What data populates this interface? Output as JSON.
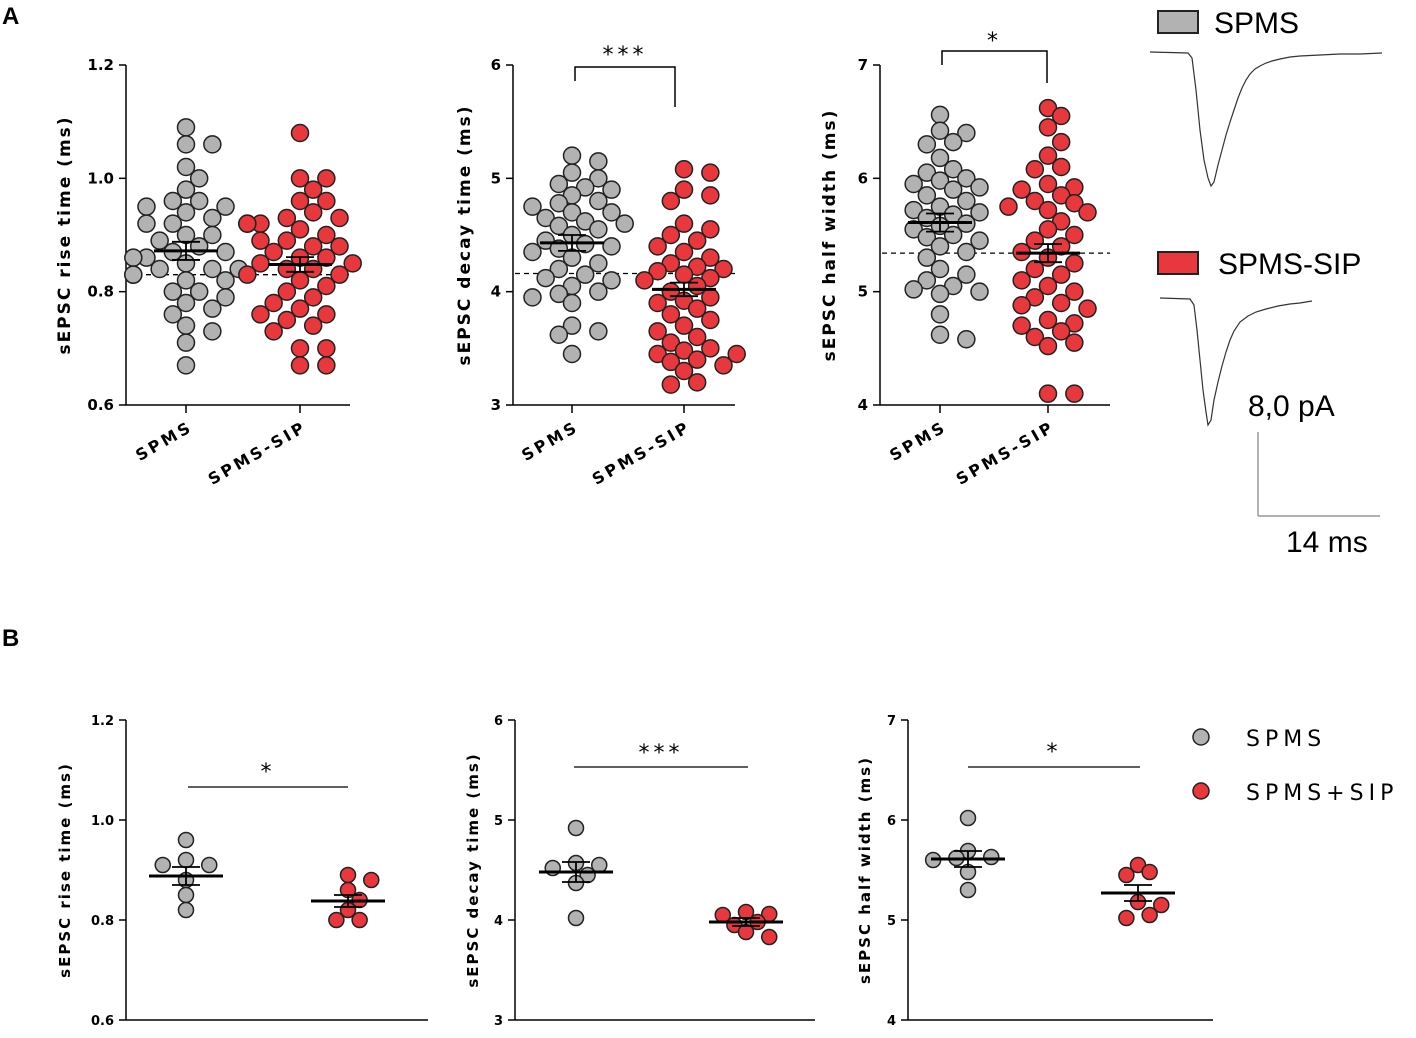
{
  "colors": {
    "spms": "#b2b2b2",
    "sip": "#e8383d",
    "stroke": "#222222"
  },
  "panel_labels": {
    "a": "A",
    "b": "B"
  },
  "legend_top": {
    "spms": "SPMS",
    "sip": "SPMS-SIP"
  },
  "legend_bottom": {
    "spms": "SPMS",
    "sip": "SPMS+SIP"
  },
  "scale_bar": {
    "amplitude": "8,0 pA",
    "time": "14 ms"
  },
  "chart_data": [
    {
      "id": "a1",
      "type": "scatter",
      "panel": "A",
      "ylabel": "sEPSC rise time (ms)",
      "ylim": [
        0.6,
        1.2
      ],
      "yticks": [
        "0.6",
        "0.8",
        "1.0",
        "1.2"
      ],
      "categories": [
        "SPMS",
        "SPMS-SIP"
      ],
      "series": [
        {
          "name": "SPMS",
          "mean": 0.872,
          "sem": 0.016,
          "values": [
            1.09,
            1.06,
            1.06,
            1.02,
            1.0,
            0.98,
            0.96,
            0.96,
            0.95,
            0.95,
            0.94,
            0.93,
            0.92,
            0.92,
            0.9,
            0.9,
            0.89,
            0.88,
            0.87,
            0.87,
            0.86,
            0.86,
            0.85,
            0.84,
            0.84,
            0.84,
            0.83,
            0.83,
            0.82,
            0.82,
            0.8,
            0.8,
            0.79,
            0.78,
            0.77,
            0.76,
            0.74,
            0.73,
            0.71,
            0.67
          ]
        },
        {
          "name": "SPMS-SIP",
          "mean": 0.848,
          "sem": 0.013,
          "values": [
            1.08,
            1.0,
            1.0,
            0.98,
            0.96,
            0.96,
            0.94,
            0.93,
            0.93,
            0.92,
            0.92,
            0.92,
            0.91,
            0.9,
            0.89,
            0.89,
            0.88,
            0.88,
            0.87,
            0.86,
            0.86,
            0.85,
            0.85,
            0.84,
            0.84,
            0.83,
            0.83,
            0.82,
            0.81,
            0.8,
            0.79,
            0.78,
            0.77,
            0.76,
            0.76,
            0.75,
            0.74,
            0.73,
            0.7,
            0.7,
            0.67,
            0.67
          ]
        }
      ],
      "reference_line": 0.83,
      "significance": ""
    },
    {
      "id": "a2",
      "type": "scatter",
      "panel": "A",
      "ylabel": "sEPSC decay time (ms)",
      "ylim": [
        3,
        6
      ],
      "yticks": [
        "3",
        "4",
        "5",
        "6"
      ],
      "categories": [
        "SPMS",
        "SPMS-SIP"
      ],
      "series": [
        {
          "name": "SPMS",
          "mean": 4.43,
          "sem": 0.07,
          "values": [
            5.2,
            5.15,
            5.05,
            5.0,
            4.95,
            4.92,
            4.9,
            4.85,
            4.8,
            4.78,
            4.75,
            4.7,
            4.7,
            4.65,
            4.62,
            4.6,
            4.58,
            4.55,
            4.5,
            4.45,
            4.42,
            4.4,
            4.38,
            4.35,
            4.3,
            4.25,
            4.2,
            4.15,
            4.12,
            4.1,
            4.05,
            4.0,
            3.98,
            3.95,
            3.9,
            3.7,
            3.65,
            3.62,
            3.45
          ]
        },
        {
          "name": "SPMS-SIP",
          "mean": 4.02,
          "sem": 0.06,
          "values": [
            5.08,
            5.05,
            4.9,
            4.85,
            4.8,
            4.6,
            4.55,
            4.5,
            4.45,
            4.4,
            4.35,
            4.3,
            4.25,
            4.22,
            4.2,
            4.18,
            4.15,
            4.12,
            4.1,
            4.05,
            4.0,
            3.95,
            3.92,
            3.9,
            3.85,
            3.8,
            3.75,
            3.7,
            3.65,
            3.6,
            3.55,
            3.5,
            3.48,
            3.45,
            3.45,
            3.4,
            3.38,
            3.35,
            3.3,
            3.2,
            3.18
          ]
        }
      ],
      "reference_line": 4.16,
      "significance": "***"
    },
    {
      "id": "a3",
      "type": "scatter",
      "panel": "A",
      "ylabel": "sEPSC half width (ms)",
      "ylim": [
        4,
        7
      ],
      "yticks": [
        "4",
        "5",
        "6",
        "7"
      ],
      "categories": [
        "SPMS",
        "SPMS-SIP"
      ],
      "series": [
        {
          "name": "SPMS",
          "mean": 5.61,
          "sem": 0.08,
          "values": [
            6.56,
            6.42,
            6.4,
            6.32,
            6.3,
            6.18,
            6.08,
            6.05,
            6.0,
            5.98,
            5.95,
            5.92,
            5.9,
            5.85,
            5.8,
            5.75,
            5.72,
            5.7,
            5.68,
            5.65,
            5.6,
            5.58,
            5.55,
            5.5,
            5.48,
            5.45,
            5.4,
            5.35,
            5.3,
            5.2,
            5.15,
            5.1,
            5.05,
            5.02,
            5.0,
            4.98,
            4.8,
            4.62,
            4.58
          ]
        },
        {
          "name": "SPMS-SIP",
          "mean": 5.34,
          "sem": 0.08,
          "values": [
            6.62,
            6.55,
            6.45,
            6.32,
            6.2,
            6.1,
            6.08,
            5.95,
            5.92,
            5.9,
            5.85,
            5.8,
            5.78,
            5.75,
            5.72,
            5.7,
            5.62,
            5.55,
            5.5,
            5.45,
            5.4,
            5.35,
            5.3,
            5.25,
            5.2,
            5.15,
            5.1,
            5.05,
            5.0,
            4.95,
            4.9,
            4.88,
            4.85,
            4.75,
            4.72,
            4.7,
            4.65,
            4.6,
            4.55,
            4.52,
            4.1,
            4.1
          ]
        }
      ],
      "reference_line": 5.34,
      "significance": "*"
    },
    {
      "id": "b1",
      "type": "scatter",
      "panel": "B",
      "ylabel": "sEPSC rise time (ms)",
      "ylim": [
        0.6,
        1.2
      ],
      "yticks": [
        "0.6",
        "0.8",
        "1.0",
        "1.2"
      ],
      "categories": [
        "SPMS",
        "SPMS+SIP"
      ],
      "series": [
        {
          "name": "SPMS",
          "mean": 0.888,
          "sem": 0.018,
          "values": [
            0.96,
            0.92,
            0.91,
            0.91,
            0.88,
            0.85,
            0.82
          ]
        },
        {
          "name": "SPMS+SIP",
          "mean": 0.838,
          "sem": 0.012,
          "values": [
            0.89,
            0.88,
            0.86,
            0.84,
            0.82,
            0.8,
            0.8
          ]
        }
      ],
      "significance": "*"
    },
    {
      "id": "b2",
      "type": "scatter",
      "panel": "B",
      "ylabel": "sEPSC decay time (ms)",
      "ylim": [
        3,
        6
      ],
      "yticks": [
        "3",
        "4",
        "5",
        "6"
      ],
      "categories": [
        "SPMS",
        "SPMS+SIP"
      ],
      "series": [
        {
          "name": "SPMS",
          "mean": 4.48,
          "sem": 0.1,
          "values": [
            4.92,
            4.57,
            4.55,
            4.52,
            4.45,
            4.37,
            4.02
          ]
        },
        {
          "name": "SPMS+SIP",
          "mean": 3.98,
          "sem": 0.04,
          "values": [
            4.08,
            4.06,
            4.05,
            3.98,
            3.95,
            3.88,
            3.83
          ]
        }
      ],
      "significance": "***"
    },
    {
      "id": "b3",
      "type": "scatter",
      "panel": "B",
      "ylabel": "sEPSC half width  (ms)",
      "ylim": [
        4,
        7
      ],
      "yticks": [
        "4",
        "5",
        "6",
        "7"
      ],
      "categories": [
        "SPMS",
        "SPMS+SIP"
      ],
      "series": [
        {
          "name": "SPMS",
          "mean": 5.61,
          "sem": 0.08,
          "values": [
            6.02,
            5.69,
            5.63,
            5.62,
            5.6,
            5.48,
            5.3
          ]
        },
        {
          "name": "SPMS+SIP",
          "mean": 5.27,
          "sem": 0.08,
          "values": [
            5.55,
            5.48,
            5.45,
            5.18,
            5.15,
            5.05,
            5.02
          ]
        }
      ],
      "significance": "*"
    }
  ]
}
